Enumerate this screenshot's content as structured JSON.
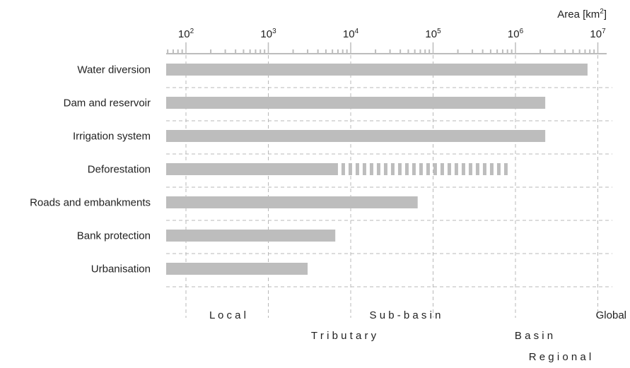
{
  "chart_data": {
    "type": "bar",
    "orientation": "horizontal",
    "axis_title": "Area [km",
    "axis_title_sup": "2",
    "axis_title_end": "]",
    "xscale": "log",
    "xlim": [
      50,
      15000000
    ],
    "grid": true,
    "xticks": [
      {
        "base": "10",
        "exp": "2",
        "value": 100
      },
      {
        "base": "10",
        "exp": "3",
        "value": 1000
      },
      {
        "base": "10",
        "exp": "4",
        "value": 10000
      },
      {
        "base": "10",
        "exp": "5",
        "value": 100000
      },
      {
        "base": "10",
        "exp": "6",
        "value": 1000000
      },
      {
        "base": "10",
        "exp": "7",
        "value": 10000000
      }
    ],
    "categories": [
      "Water diversion",
      "Dam and reservoir",
      "Irrigation system",
      "Deforestation",
      "Roads and embankments",
      "Bank protection",
      "Urbanisation"
    ],
    "values": [
      7500000,
      2300000,
      2300000,
      7000,
      65000,
      6500,
      3000
    ],
    "extended": [
      null,
      null,
      null,
      850000,
      null,
      null,
      null
    ],
    "scale_labels": [
      {
        "text": "L o c a l",
        "row": 1
      },
      {
        "text": "S u b - b a s i n",
        "row": 1
      },
      {
        "text": "Global",
        "row": 1
      },
      {
        "text": "T r i b u t a r y",
        "row": 2
      },
      {
        "text": "B a s i n",
        "row": 2
      },
      {
        "text": "R e g i o n a l",
        "row": 3
      }
    ],
    "colors": {
      "bar": "#bdbdbd",
      "axis": "#bdbdbd",
      "grid": "#b8b8b8"
    }
  }
}
